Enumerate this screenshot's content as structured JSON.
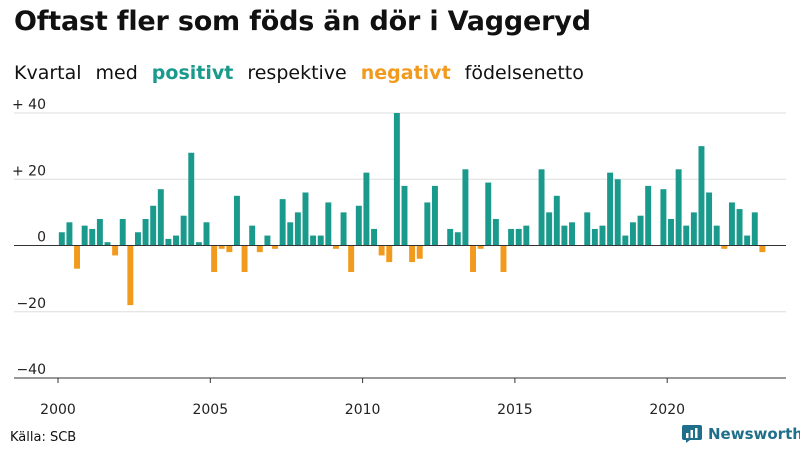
{
  "header": {
    "title": "Oftast fler som föds än dör i Vaggeryd",
    "subtitle_parts": {
      "kvartal": "Kvartal",
      "med": "med",
      "positive": "positivt",
      "respektive": "respektive",
      "negative": "negativt",
      "rest": "födelsenetto"
    }
  },
  "footer": {
    "source": "Källa: SCB",
    "brand": "Newsworthy",
    "brand_icon": "bar-chart-logo-icon"
  },
  "colors": {
    "positive": "#1a9a8c",
    "negative": "#f29a1e",
    "grid": "#dddddd",
    "axis": "#333333",
    "brand": "#1f6f8b"
  },
  "chart_data": {
    "type": "bar",
    "title": "Oftast fler som föds än dör i Vaggeryd",
    "xlabel": "",
    "ylabel": "",
    "ylim": [
      -40,
      40
    ],
    "yticks": [
      40,
      20,
      0,
      -20,
      -40
    ],
    "ytick_labels": [
      "+ 40",
      "+ 20",
      "0",
      "−20",
      "−40"
    ],
    "xlim": [
      2000,
      2023.9
    ],
    "xticks": [
      2000,
      2005,
      2010,
      2015,
      2020
    ],
    "xtick_labels": [
      "2000",
      "2005",
      "2010",
      "2015",
      "2020"
    ],
    "grid": true,
    "start": "2000 Q1",
    "period": "quarter",
    "values": [
      4,
      7,
      -7,
      6,
      5,
      8,
      1,
      -3,
      8,
      -18,
      4,
      8,
      12,
      17,
      2,
      3,
      9,
      28,
      1,
      7,
      -8,
      -1,
      -2,
      15,
      -8,
      6,
      -2,
      3,
      -1,
      14,
      7,
      10,
      16,
      3,
      3,
      13,
      -1,
      10,
      -8,
      12,
      22,
      5,
      -3,
      -5,
      40,
      18,
      -5,
      -4,
      13,
      18,
      0,
      5,
      4,
      23,
      -8,
      -1,
      19,
      8,
      -8,
      5,
      5,
      6,
      0,
      23,
      10,
      15,
      6,
      7,
      0,
      10,
      5,
      6,
      22,
      20,
      3,
      7,
      9,
      18,
      0,
      17,
      8,
      23,
      6,
      10,
      30,
      16,
      6,
      -1,
      13,
      11,
      3,
      10,
      -2
    ]
  }
}
